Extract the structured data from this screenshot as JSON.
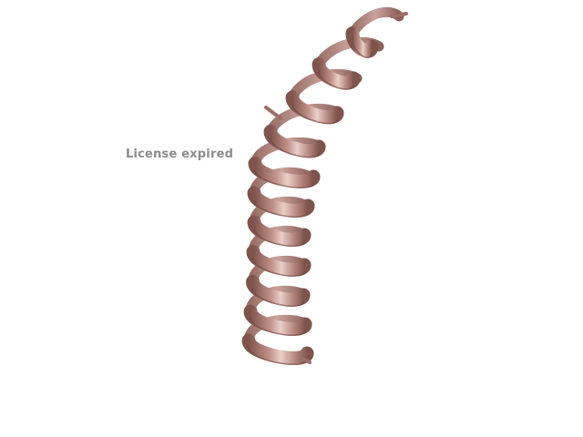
{
  "viewer": {
    "watermark_text": "License expired",
    "watermark_color": "#8c8c8c",
    "background_color": "#ffffff",
    "ribbon_color": "#c09088",
    "ribbon_shade": "#7e544c",
    "ribbon_highlight": "#e9cfc9",
    "ribbon_back": "#a57b74",
    "representation": "cartoon-helix-icon"
  }
}
